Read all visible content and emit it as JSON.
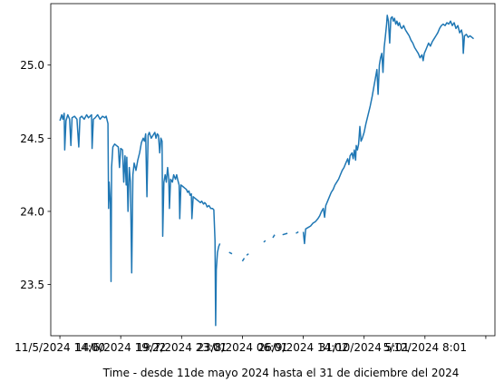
{
  "chart_data": {
    "type": "line",
    "title": "",
    "xlabel": "Time - desde 11de mayo 2024 hasta el 31 de diciembre del 2024",
    "ylabel": "",
    "x_tick_labels": [
      "11/5/2024 14:00",
      "14/6/2024 19:22",
      "19/7/2024 23:01",
      "23/8/2024 06:01",
      "26/9/2024 14:02",
      "31/10/2024 5:01",
      "5/12/2024 8:01",
      ""
    ],
    "y_ticks": [
      23.5,
      24.0,
      24.5,
      25.0
    ],
    "y_tick_labels": [
      "23.5",
      "24.0",
      "24.5",
      "25.0"
    ],
    "ylim": [
      23.15,
      25.42
    ],
    "xlim": [
      -0.15,
      7.15
    ],
    "grid": false,
    "colors": {
      "line": "#1f77b4"
    },
    "series": [
      {
        "segments": [
          [
            [
              0,
              24.62
            ],
            [
              0.03,
              24.66
            ],
            [
              0.05,
              24.63
            ],
            [
              0.07,
              24.67
            ],
            [
              0.08,
              24.42
            ],
            [
              0.1,
              24.62
            ],
            [
              0.13,
              24.66
            ],
            [
              0.16,
              24.63
            ],
            [
              0.18,
              24.45
            ],
            [
              0.2,
              24.64
            ],
            [
              0.24,
              24.65
            ],
            [
              0.28,
              24.63
            ],
            [
              0.31,
              24.44
            ],
            [
              0.33,
              24.64
            ],
            [
              0.36,
              24.65
            ],
            [
              0.4,
              24.63
            ],
            [
              0.44,
              24.66
            ],
            [
              0.47,
              24.64
            ],
            [
              0.52,
              24.66
            ],
            [
              0.53,
              24.43
            ],
            [
              0.55,
              24.63
            ],
            [
              0.58,
              24.64
            ],
            [
              0.62,
              24.66
            ],
            [
              0.66,
              24.63
            ],
            [
              0.7,
              24.65
            ],
            [
              0.74,
              24.64
            ],
            [
              0.76,
              24.65
            ],
            [
              0.79,
              24.6
            ],
            [
              0.8,
              24.02
            ],
            [
              0.81,
              24.2
            ],
            [
              0.83,
              24.05
            ],
            [
              0.84,
              23.52
            ],
            [
              0.85,
              24.3
            ],
            [
              0.87,
              24.44
            ],
            [
              0.9,
              24.46
            ],
            [
              0.93,
              24.45
            ],
            [
              0.96,
              24.44
            ],
            [
              0.98,
              24.3
            ],
            [
              1.0,
              24.43
            ],
            [
              1.03,
              24.42
            ],
            [
              1.05,
              24.2
            ],
            [
              1.07,
              24.38
            ],
            [
              1.09,
              24.18
            ],
            [
              1.1,
              24.37
            ],
            [
              1.12,
              24.0
            ],
            [
              1.14,
              24.3
            ],
            [
              1.16,
              24.2
            ],
            [
              1.18,
              23.58
            ],
            [
              1.2,
              24.25
            ],
            [
              1.22,
              24.33
            ],
            [
              1.25,
              24.28
            ],
            [
              1.28,
              24.35
            ],
            [
              1.31,
              24.4
            ],
            [
              1.34,
              24.47
            ],
            [
              1.37,
              24.5
            ],
            [
              1.39,
              24.48
            ],
            [
              1.41,
              24.53
            ],
            [
              1.43,
              24.1
            ],
            [
              1.45,
              24.52
            ],
            [
              1.47,
              24.54
            ],
            [
              1.5,
              24.5
            ],
            [
              1.53,
              24.52
            ],
            [
              1.56,
              24.54
            ],
            [
              1.58,
              24.5
            ],
            [
              1.6,
              24.53
            ],
            [
              1.62,
              24.52
            ],
            [
              1.64,
              24.4
            ],
            [
              1.66,
              24.5
            ],
            [
              1.68,
              24.48
            ],
            [
              1.69,
              23.83
            ],
            [
              1.71,
              24.2
            ],
            [
              1.73,
              24.25
            ],
            [
              1.75,
              24.2
            ],
            [
              1.77,
              24.3
            ],
            [
              1.79,
              24.22
            ],
            [
              1.8,
              24.02
            ],
            [
              1.82,
              24.22
            ],
            [
              1.85,
              24.2
            ],
            [
              1.87,
              24.25
            ],
            [
              1.9,
              24.22
            ],
            [
              1.92,
              24.25
            ],
            [
              1.94,
              24.21
            ],
            [
              1.96,
              24.18
            ],
            [
              1.97,
              23.95
            ],
            [
              1.99,
              24.18
            ],
            [
              2.02,
              24.17
            ],
            [
              2.05,
              24.16
            ],
            [
              2.08,
              24.15
            ],
            [
              2.1,
              24.13
            ],
            [
              2.12,
              24.14
            ],
            [
              2.14,
              24.11
            ],
            [
              2.16,
              24.12
            ],
            [
              2.17,
              23.95
            ],
            [
              2.19,
              24.1
            ],
            [
              2.22,
              24.09
            ],
            [
              2.25,
              24.08
            ],
            [
              2.28,
              24.07
            ],
            [
              2.31,
              24.06
            ],
            [
              2.33,
              24.07
            ],
            [
              2.36,
              24.05
            ],
            [
              2.38,
              24.06
            ],
            [
              2.4,
              24.05
            ],
            [
              2.42,
              24.03
            ],
            [
              2.45,
              24.04
            ],
            [
              2.48,
              24.02
            ],
            [
              2.51,
              24.02
            ],
            [
              2.53,
              24.01
            ],
            [
              2.55,
              23.8
            ],
            [
              2.56,
              23.22
            ],
            [
              2.57,
              23.6
            ],
            [
              2.59,
              23.72
            ],
            [
              2.61,
              23.76
            ],
            [
              2.63,
              23.78
            ]
          ],
          [
            [
              2.78,
              23.72
            ],
            [
              2.83,
              23.71
            ]
          ],
          [
            [
              3.0,
              23.66
            ],
            [
              3.03,
              23.68
            ]
          ],
          [
            [
              3.07,
              23.7
            ],
            [
              3.1,
              23.71
            ]
          ],
          [
            [
              3.35,
              23.79
            ],
            [
              3.38,
              23.8
            ]
          ],
          [
            [
              3.5,
              23.82
            ],
            [
              3.53,
              23.84
            ]
          ],
          [
            [
              3.66,
              23.84
            ],
            [
              3.74,
              23.85
            ]
          ],
          [
            [
              3.88,
              23.85
            ],
            [
              3.92,
              23.86
            ]
          ],
          [
            [
              4.0,
              23.86
            ],
            [
              4.02,
              23.78
            ],
            [
              4.04,
              23.88
            ],
            [
              4.08,
              23.89
            ],
            [
              4.12,
              23.9
            ],
            [
              4.16,
              23.92
            ],
            [
              4.2,
              23.93
            ],
            [
              4.24,
              23.95
            ],
            [
              4.27,
              23.97
            ],
            [
              4.3,
              24.0
            ],
            [
              4.33,
              24.02
            ],
            [
              4.35,
              23.96
            ],
            [
              4.37,
              24.04
            ],
            [
              4.4,
              24.07
            ],
            [
              4.43,
              24.1
            ],
            [
              4.46,
              24.13
            ],
            [
              4.49,
              24.15
            ],
            [
              4.52,
              24.18
            ],
            [
              4.55,
              24.2
            ],
            [
              4.58,
              24.22
            ],
            [
              4.61,
              24.25
            ],
            [
              4.64,
              24.28
            ],
            [
              4.67,
              24.3
            ],
            [
              4.7,
              24.33
            ],
            [
              4.73,
              24.36
            ],
            [
              4.75,
              24.32
            ],
            [
              4.77,
              24.38
            ],
            [
              4.8,
              24.4
            ],
            [
              4.82,
              24.36
            ],
            [
              4.84,
              24.42
            ],
            [
              4.86,
              24.35
            ],
            [
              4.87,
              24.45
            ],
            [
              4.89,
              24.42
            ],
            [
              4.91,
              24.46
            ],
            [
              4.93,
              24.58
            ],
            [
              4.95,
              24.48
            ],
            [
              4.97,
              24.5
            ],
            [
              5.0,
              24.54
            ],
            [
              5.03,
              24.6
            ],
            [
              5.06,
              24.65
            ],
            [
              5.1,
              24.72
            ],
            [
              5.13,
              24.78
            ],
            [
              5.16,
              24.85
            ],
            [
              5.19,
              24.92
            ],
            [
              5.21,
              24.97
            ],
            [
              5.23,
              24.8
            ],
            [
              5.25,
              25.0
            ],
            [
              5.27,
              25.05
            ],
            [
              5.29,
              25.08
            ],
            [
              5.31,
              24.95
            ],
            [
              5.33,
              25.12
            ],
            [
              5.35,
              25.2
            ],
            [
              5.37,
              25.28
            ],
            [
              5.38,
              25.34
            ],
            [
              5.4,
              25.3
            ],
            [
              5.42,
              25.15
            ],
            [
              5.44,
              25.32
            ],
            [
              5.46,
              25.33
            ],
            [
              5.48,
              25.3
            ],
            [
              5.5,
              25.32
            ],
            [
              5.52,
              25.28
            ],
            [
              5.54,
              25.3
            ],
            [
              5.56,
              25.27
            ],
            [
              5.58,
              25.29
            ],
            [
              5.6,
              25.26
            ],
            [
              5.62,
              25.25
            ],
            [
              5.65,
              25.27
            ],
            [
              5.68,
              25.24
            ],
            [
              5.71,
              25.22
            ],
            [
              5.74,
              25.2
            ],
            [
              5.77,
              25.17
            ],
            [
              5.8,
              25.15
            ],
            [
              5.83,
              25.12
            ],
            [
              5.86,
              25.1
            ],
            [
              5.89,
              25.08
            ],
            [
              5.92,
              25.05
            ],
            [
              5.95,
              25.07
            ],
            [
              5.97,
              25.03
            ],
            [
              5.99,
              25.08
            ],
            [
              6.01,
              25.1
            ],
            [
              6.03,
              25.12
            ],
            [
              6.06,
              25.15
            ],
            [
              6.09,
              25.13
            ],
            [
              6.12,
              25.16
            ],
            [
              6.15,
              25.18
            ],
            [
              6.18,
              25.2
            ],
            [
              6.21,
              25.22
            ],
            [
              6.24,
              25.25
            ],
            [
              6.27,
              25.27
            ],
            [
              6.3,
              25.28
            ],
            [
              6.33,
              25.27
            ],
            [
              6.36,
              25.29
            ],
            [
              6.39,
              25.28
            ],
            [
              6.42,
              25.3
            ],
            [
              6.45,
              25.27
            ],
            [
              6.48,
              25.29
            ],
            [
              6.51,
              25.25
            ],
            [
              6.54,
              25.27
            ],
            [
              6.57,
              25.22
            ],
            [
              6.6,
              25.24
            ],
            [
              6.62,
              25.2
            ],
            [
              6.63,
              25.08
            ],
            [
              6.65,
              25.2
            ],
            [
              6.68,
              25.21
            ],
            [
              6.71,
              25.19
            ],
            [
              6.74,
              25.2
            ],
            [
              6.77,
              25.19
            ],
            [
              6.8,
              25.18
            ]
          ]
        ]
      }
    ]
  }
}
